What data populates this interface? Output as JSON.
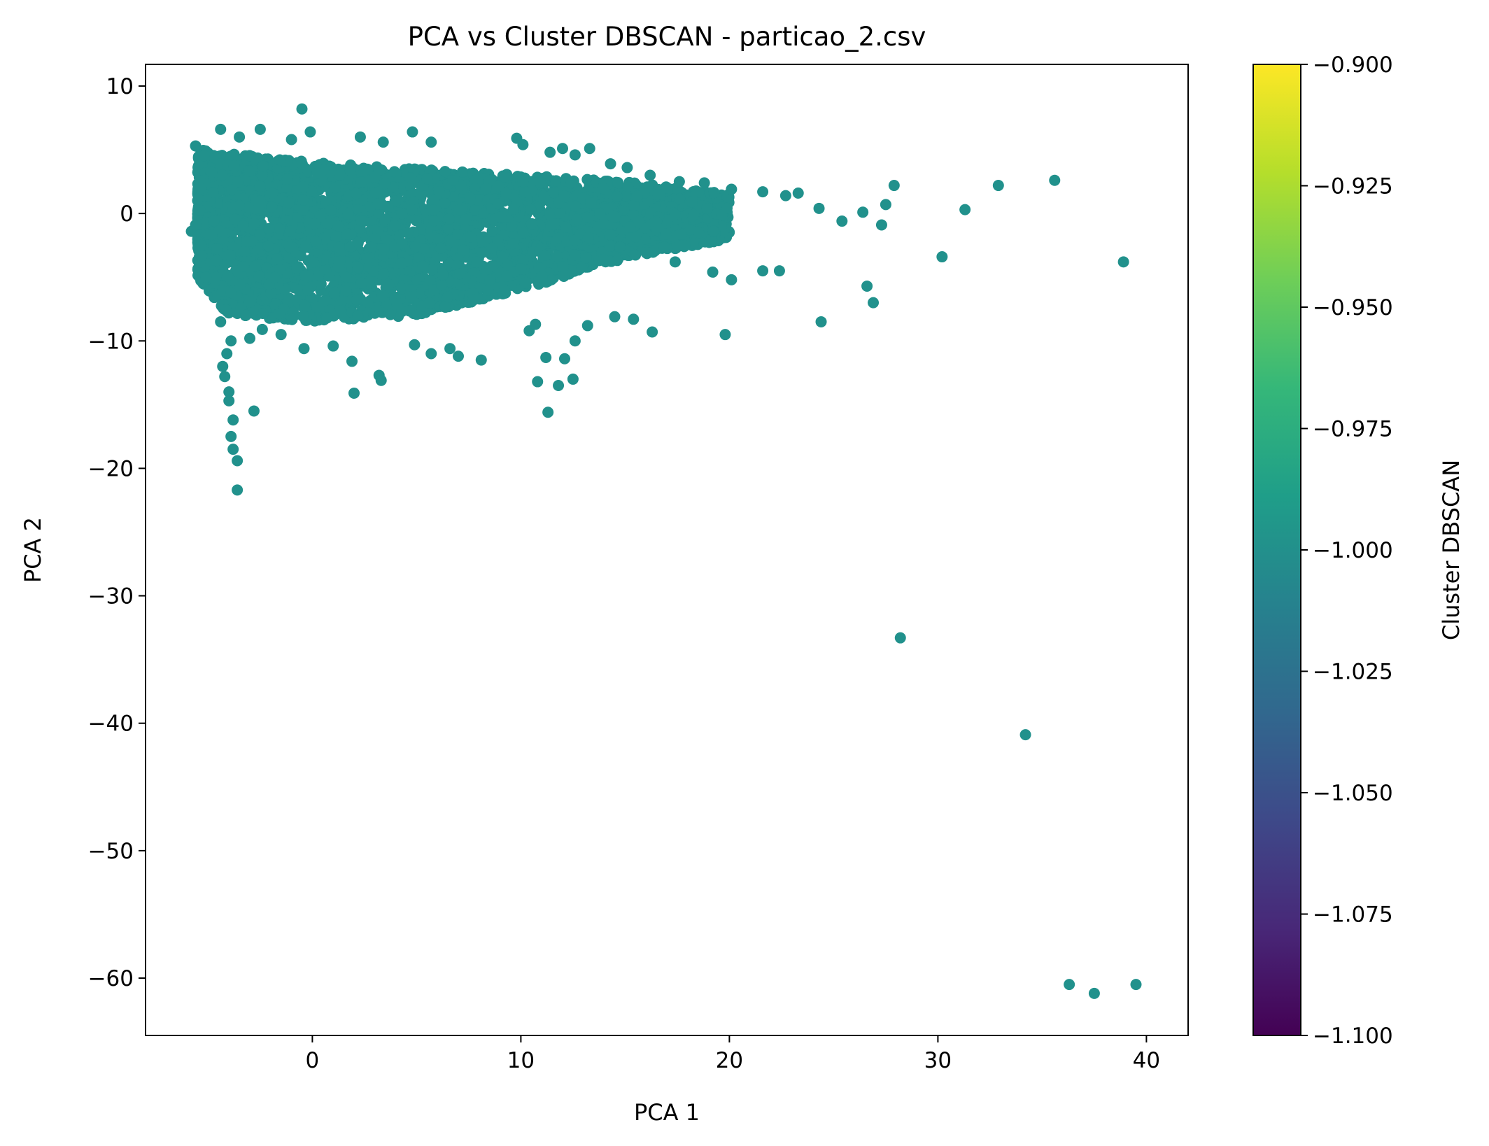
{
  "chart_data": {
    "type": "scatter",
    "title": "PCA vs Cluster DBSCAN - particao_2.csv",
    "xlabel": "PCA 1",
    "ylabel": "PCA 2",
    "xlim": [
      -8,
      42
    ],
    "ylim": [
      -64.5,
      11.7
    ],
    "xticks": [
      0,
      10,
      20,
      30,
      40
    ],
    "yticks": [
      10,
      0,
      -10,
      -20,
      -30,
      -40,
      -50,
      -60
    ],
    "grid": false,
    "point_color": "#21918c",
    "colorbar": {
      "label": "Cluster DBSCAN",
      "range": [
        -1.1,
        -0.9
      ],
      "ticks": [
        -0.9,
        -0.925,
        -0.95,
        -0.975,
        -1.0,
        -1.025,
        -1.05,
        -1.075,
        -1.1
      ],
      "tick_labels": [
        "−0.900",
        "−0.925",
        "−0.950",
        "−0.975",
        "−1.000",
        "−1.025",
        "−1.050",
        "−1.075",
        "−1.100"
      ],
      "colormap": "viridis",
      "stops": [
        "#440154",
        "#482878",
        "#3e4989",
        "#31688e",
        "#26828e",
        "#1f9e89",
        "#35b779",
        "#6ece58",
        "#b5de2b",
        "#fde725"
      ]
    },
    "series": [
      {
        "cluster": -1,
        "dense_region": {
          "x_range": [
            -5.5,
            20
          ],
          "y_upper": [
            [
              -5.5,
              5
            ],
            [
              0,
              4
            ],
            [
              5,
              3.5
            ],
            [
              10,
              3
            ],
            [
              15,
              2.5
            ],
            [
              20,
              1.5
            ]
          ],
          "y_lower": [
            [
              -5.5,
              -5
            ],
            [
              -4,
              -8
            ],
            [
              0,
              -8.5
            ],
            [
              5,
              -8
            ],
            [
              10,
              -6
            ],
            [
              15,
              -3.5
            ],
            [
              20,
              -2
            ]
          ]
        },
        "points": [
          [
            -5.6,
            5.3
          ],
          [
            -5.8,
            -1.4
          ],
          [
            -4.4,
            6.6
          ],
          [
            -3.5,
            6.0
          ],
          [
            -2.5,
            6.6
          ],
          [
            -1.0,
            5.8
          ],
          [
            -0.5,
            8.2
          ],
          [
            -0.1,
            6.4
          ],
          [
            2.3,
            6.0
          ],
          [
            3.4,
            5.6
          ],
          [
            4.8,
            6.4
          ],
          [
            5.7,
            5.6
          ],
          [
            9.8,
            5.9
          ],
          [
            10.1,
            5.4
          ],
          [
            11.4,
            4.8
          ],
          [
            12.0,
            5.1
          ],
          [
            12.6,
            4.6
          ],
          [
            13.3,
            5.1
          ],
          [
            14.3,
            3.9
          ],
          [
            15.1,
            3.6
          ],
          [
            16.2,
            3.0
          ],
          [
            17.6,
            2.5
          ],
          [
            18.8,
            2.4
          ],
          [
            20.1,
            1.9
          ],
          [
            21.6,
            1.7
          ],
          [
            22.7,
            1.4
          ],
          [
            23.3,
            1.6
          ],
          [
            24.3,
            0.4
          ],
          [
            25.4,
            -0.6
          ],
          [
            26.4,
            0.1
          ],
          [
            27.5,
            0.7
          ],
          [
            27.9,
            2.2
          ],
          [
            27.3,
            -0.9
          ],
          [
            32.9,
            2.2
          ],
          [
            35.6,
            2.6
          ],
          [
            31.3,
            0.3
          ],
          [
            30.2,
            -3.4
          ],
          [
            38.9,
            -3.8
          ],
          [
            26.6,
            -5.7
          ],
          [
            26.9,
            -7.0
          ],
          [
            24.4,
            -8.5
          ],
          [
            19.8,
            -9.5
          ],
          [
            16.3,
            -9.3
          ],
          [
            15.4,
            -8.3
          ],
          [
            14.5,
            -8.1
          ],
          [
            22.4,
            -4.5
          ],
          [
            21.6,
            -4.5
          ],
          [
            20.1,
            -5.2
          ],
          [
            19.2,
            -4.6
          ],
          [
            17.4,
            -3.8
          ],
          [
            13.2,
            -8.8
          ],
          [
            12.6,
            -10.0
          ],
          [
            12.1,
            -11.4
          ],
          [
            12.5,
            -13.0
          ],
          [
            11.8,
            -13.5
          ],
          [
            11.3,
            -15.6
          ],
          [
            10.8,
            -13.2
          ],
          [
            11.2,
            -11.3
          ],
          [
            10.4,
            -9.2
          ],
          [
            10.7,
            -8.7
          ],
          [
            8.1,
            -11.5
          ],
          [
            7.0,
            -11.2
          ],
          [
            6.6,
            -10.6
          ],
          [
            5.7,
            -11.0
          ],
          [
            4.9,
            -10.3
          ],
          [
            3.2,
            -12.7
          ],
          [
            3.3,
            -13.1
          ],
          [
            2.0,
            -14.1
          ],
          [
            1.9,
            -11.6
          ],
          [
            1.0,
            -10.4
          ],
          [
            -0.4,
            -10.6
          ],
          [
            -1.5,
            -9.5
          ],
          [
            -2.4,
            -9.1
          ],
          [
            -3.0,
            -9.8
          ],
          [
            -2.8,
            -15.5
          ],
          [
            -3.9,
            -10.0
          ],
          [
            -4.1,
            -11.0
          ],
          [
            -4.3,
            -12.0
          ],
          [
            -4.2,
            -12.8
          ],
          [
            -4.0,
            -14.0
          ],
          [
            -4.0,
            -14.7
          ],
          [
            -3.8,
            -16.2
          ],
          [
            -3.9,
            -17.5
          ],
          [
            -3.8,
            -18.5
          ],
          [
            -3.6,
            -19.4
          ],
          [
            -3.6,
            -21.7
          ],
          [
            -4.4,
            -8.5
          ],
          [
            -5.1,
            -5.0
          ],
          [
            -5.3,
            -3.3
          ],
          [
            -5.6,
            -0.9
          ],
          [
            28.2,
            -33.3
          ],
          [
            34.2,
            -40.9
          ],
          [
            36.3,
            -60.5
          ],
          [
            37.5,
            -61.2
          ],
          [
            39.5,
            -60.5
          ]
        ]
      }
    ]
  }
}
